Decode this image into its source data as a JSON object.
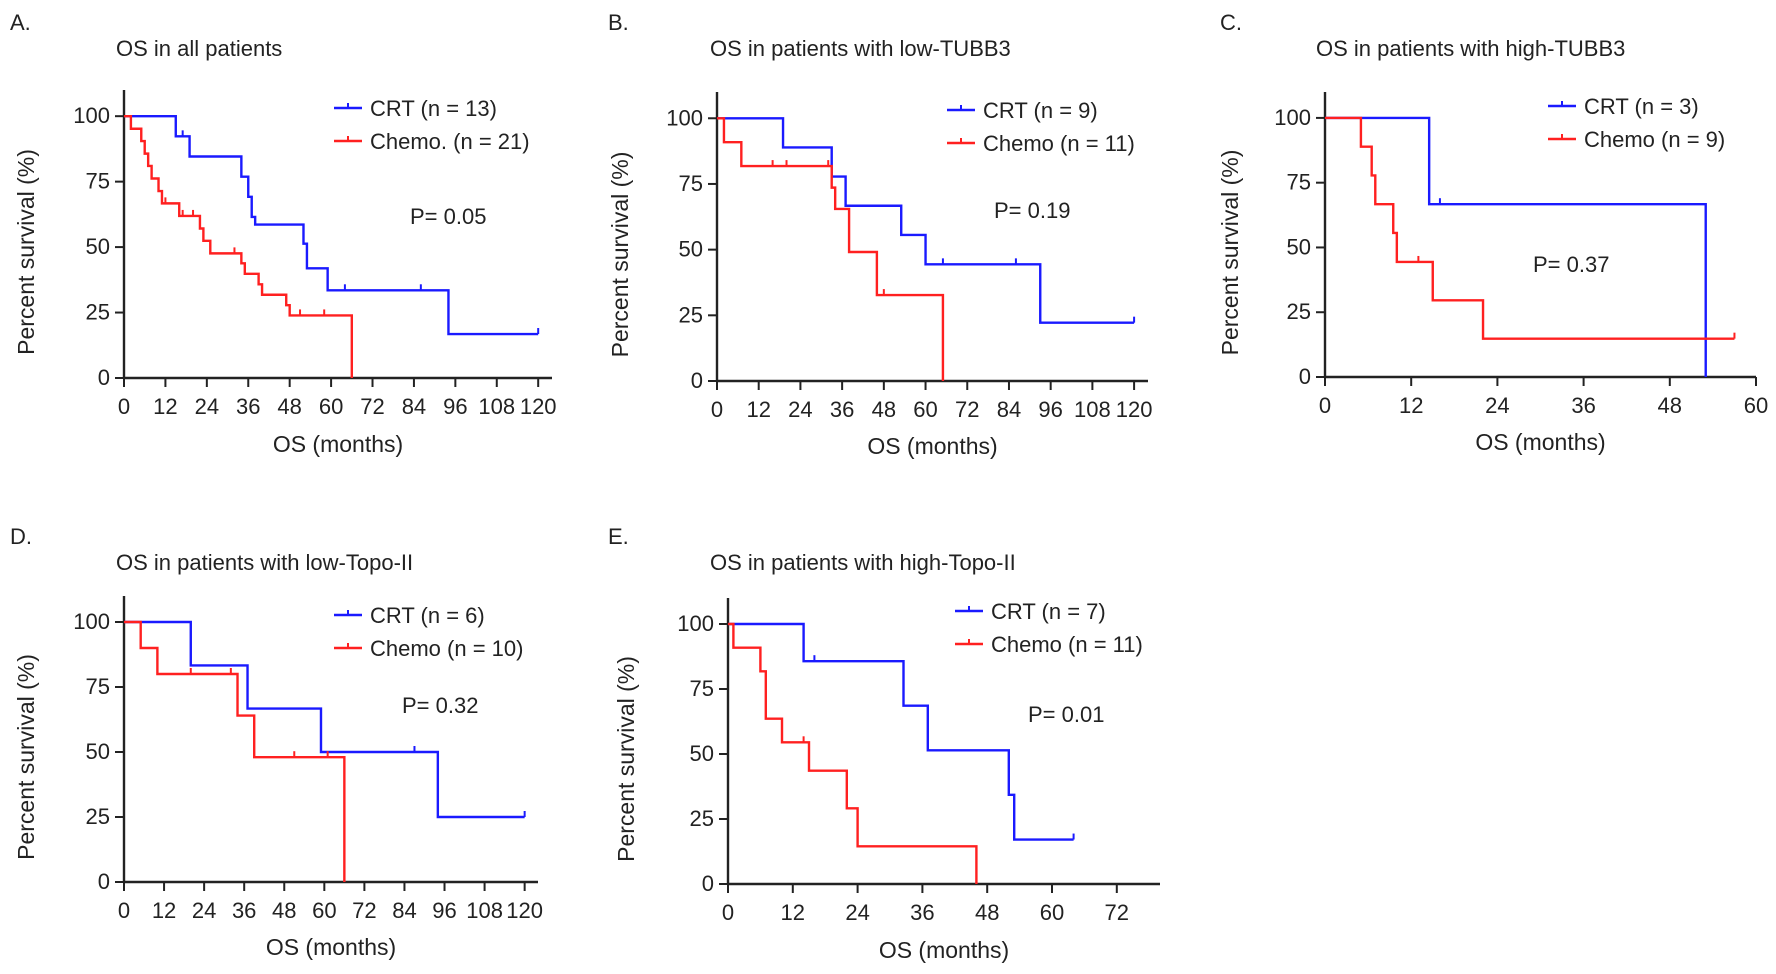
{
  "figure": {
    "background": "#ffffff",
    "axis_color": "#222222"
  },
  "chart_data": [
    {
      "panel": "A.",
      "type": "line",
      "title": "OS in all patients",
      "xlabel": "OS (months)",
      "ylabel": "Percent survival (%)",
      "xlim": [
        0,
        124
      ],
      "ylim": [
        0,
        110
      ],
      "xticks": [
        0,
        12,
        24,
        36,
        48,
        60,
        72,
        84,
        96,
        108,
        120
      ],
      "yticks": [
        0,
        25,
        50,
        75,
        100
      ],
      "pvalue": "P= 0.05",
      "series": [
        {
          "name": "CRT (n = 13)",
          "color": "#1a1aff",
          "steps": [
            [
              0,
              100
            ],
            [
              15,
              92.3
            ],
            [
              19,
              84.6
            ],
            [
              34,
              76.9
            ],
            [
              36,
              69.2
            ],
            [
              37,
              61.5
            ],
            [
              38,
              58.6
            ],
            [
              52,
              51.3
            ],
            [
              53,
              41.9
            ],
            [
              59,
              33.5
            ],
            [
              94,
              16.8
            ],
            [
              120,
              16.8
            ]
          ],
          "censored": [
            [
              17,
              92.3
            ],
            [
              64,
              33.5
            ],
            [
              86,
              33.5
            ],
            [
              120,
              16.8
            ]
          ]
        },
        {
          "name": "Chemo. (n = 21)",
          "color": "#ff2020",
          "steps": [
            [
              0,
              100
            ],
            [
              2,
              95.2
            ],
            [
              5,
              90.5
            ],
            [
              6,
              85.7
            ],
            [
              7,
              81
            ],
            [
              8,
              76.2
            ],
            [
              10,
              71.4
            ],
            [
              11,
              66.7
            ],
            [
              16,
              61.9
            ],
            [
              22,
              57.1
            ],
            [
              23,
              52.4
            ],
            [
              25,
              47.6
            ],
            [
              34,
              43.8
            ],
            [
              35,
              39.8
            ],
            [
              39,
              35.8
            ],
            [
              40,
              31.8
            ],
            [
              47,
              27.8
            ],
            [
              48,
              23.9
            ],
            [
              66,
              0
            ]
          ],
          "censored": [
            [
              12,
              66.7
            ],
            [
              17,
              61.9
            ],
            [
              20,
              61.9
            ],
            [
              32,
              47.6
            ],
            [
              51,
              23.9
            ],
            [
              58,
              23.9
            ]
          ]
        }
      ]
    },
    {
      "panel": "B.",
      "type": "line",
      "title": "OS in patients with low-TUBB3",
      "xlabel": "OS (months)",
      "ylabel": "Percent survival (%)",
      "xlim": [
        0,
        124
      ],
      "ylim": [
        0,
        110
      ],
      "xticks": [
        0,
        12,
        24,
        36,
        48,
        60,
        72,
        84,
        96,
        108,
        120
      ],
      "yticks": [
        0,
        25,
        50,
        75,
        100
      ],
      "pvalue": "P= 0.19",
      "series": [
        {
          "name": "CRT (n = 9)",
          "color": "#1a1aff",
          "steps": [
            [
              0,
              100
            ],
            [
              19,
              88.9
            ],
            [
              33,
              77.8
            ],
            [
              37,
              66.7
            ],
            [
              53,
              55.6
            ],
            [
              60,
              44.4
            ],
            [
              93,
              22.2
            ],
            [
              120,
              22.2
            ]
          ],
          "censored": [
            [
              65,
              44.4
            ],
            [
              86,
              44.4
            ],
            [
              120,
              22.2
            ]
          ]
        },
        {
          "name": "Chemo (n = 11)",
          "color": "#ff2020",
          "steps": [
            [
              0,
              100
            ],
            [
              2,
              90.9
            ],
            [
              7,
              81.8
            ],
            [
              33,
              73.6
            ],
            [
              34,
              65.5
            ],
            [
              38,
              49.1
            ],
            [
              46,
              32.7
            ],
            [
              65,
              0
            ]
          ],
          "censored": [
            [
              16,
              81.8
            ],
            [
              20,
              81.8
            ],
            [
              32,
              81.8
            ],
            [
              48,
              32.7
            ]
          ]
        }
      ]
    },
    {
      "panel": "C.",
      "type": "line",
      "title": "OS in patients with high-TUBB3",
      "xlabel": "OS (months)",
      "ylabel": "Percent survival (%)",
      "xlim": [
        0,
        60
      ],
      "ylim": [
        0,
        110
      ],
      "xticks": [
        0,
        12,
        24,
        36,
        48,
        60
      ],
      "yticks": [
        0,
        25,
        50,
        75,
        100
      ],
      "pvalue": "P= 0.37",
      "series": [
        {
          "name": "CRT (n = 3)",
          "color": "#1a1aff",
          "steps": [
            [
              0,
              100
            ],
            [
              14.5,
              66.7
            ],
            [
              53,
              0
            ]
          ],
          "censored": [
            [
              16,
              66.7
            ]
          ]
        },
        {
          "name": "Chemo (n = 9)",
          "color": "#ff2020",
          "steps": [
            [
              0,
              100
            ],
            [
              5,
              88.9
            ],
            [
              6.5,
              77.8
            ],
            [
              7,
              66.7
            ],
            [
              9.5,
              55.6
            ],
            [
              10,
              44.4
            ],
            [
              15,
              29.6
            ],
            [
              22,
              14.8
            ],
            [
              57,
              14.8
            ]
          ],
          "censored": [
            [
              13,
              44.4
            ],
            [
              57,
              14.8
            ]
          ]
        }
      ]
    },
    {
      "panel": "D.",
      "type": "line",
      "title": "OS in patients with low-Topo-II",
      "xlabel": "OS (months)",
      "ylabel": "Percent survival (%)",
      "xlim": [
        0,
        124
      ],
      "ylim": [
        0,
        110
      ],
      "xticks": [
        0,
        12,
        24,
        36,
        48,
        60,
        72,
        84,
        96,
        108,
        120
      ],
      "yticks": [
        0,
        25,
        50,
        75,
        100
      ],
      "pvalue": "P= 0.32",
      "series": [
        {
          "name": "CRT (n = 6)",
          "color": "#1a1aff",
          "steps": [
            [
              0,
              100
            ],
            [
              20,
              83.3
            ],
            [
              37,
              66.7
            ],
            [
              59,
              50
            ],
            [
              94,
              25
            ],
            [
              120,
              25
            ]
          ],
          "censored": [
            [
              87,
              50
            ],
            [
              120,
              25
            ]
          ]
        },
        {
          "name": "Chemo (n = 10)",
          "color": "#ff2020",
          "steps": [
            [
              0,
              100
            ],
            [
              5,
              90
            ],
            [
              10,
              80
            ],
            [
              34,
              64
            ],
            [
              39,
              48
            ],
            [
              66,
              0
            ]
          ],
          "censored": [
            [
              20,
              80
            ],
            [
              32,
              80
            ],
            [
              51,
              48
            ],
            [
              61,
              48
            ]
          ]
        }
      ]
    },
    {
      "panel": "E.",
      "type": "line",
      "title": "OS in patients with high-Topo-II",
      "xlabel": "OS (months)",
      "ylabel": "Percent survival (%)",
      "xlim": [
        0,
        80
      ],
      "ylim": [
        0,
        110
      ],
      "xticks": [
        0,
        12,
        24,
        36,
        48,
        60,
        72
      ],
      "yticks": [
        0,
        25,
        50,
        75,
        100
      ],
      "pvalue": "P= 0.01",
      "series": [
        {
          "name": "CRT (n = 7)",
          "color": "#1a1aff",
          "steps": [
            [
              0,
              100
            ],
            [
              14,
              85.7
            ],
            [
              32.5,
              68.6
            ],
            [
              37,
              51.4
            ],
            [
              52,
              34.3
            ],
            [
              53,
              17.1
            ],
            [
              64,
              17.1
            ]
          ],
          "censored": [
            [
              16,
              85.7
            ],
            [
              64,
              17.1
            ]
          ]
        },
        {
          "name": "Chemo (n = 11)",
          "color": "#ff2020",
          "steps": [
            [
              0,
              100
            ],
            [
              1,
              90.9
            ],
            [
              6,
              81.8
            ],
            [
              7,
              63.6
            ],
            [
              10,
              54.5
            ],
            [
              15,
              43.6
            ],
            [
              22,
              29.1
            ],
            [
              24,
              14.5
            ],
            [
              46,
              0
            ]
          ],
          "censored": [
            [
              14,
              54.5
            ]
          ]
        }
      ]
    }
  ]
}
